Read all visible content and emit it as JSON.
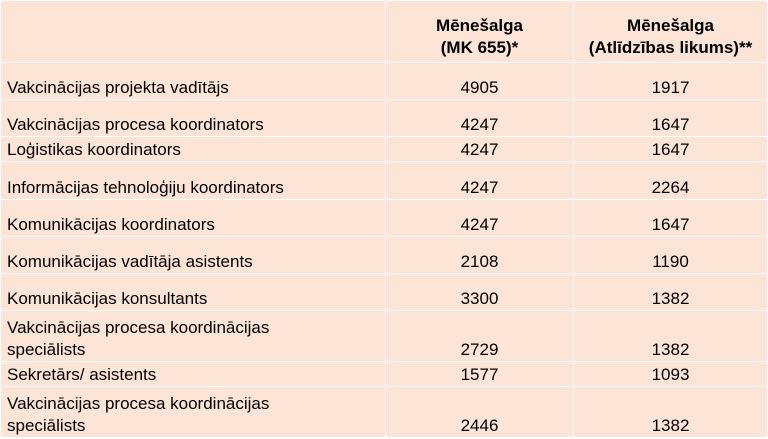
{
  "table": {
    "headers": [
      "",
      [
        "Mēnešalga",
        "(MK 655)*"
      ],
      [
        "Mēnešalga",
        "(Atlīdzības likums)**"
      ]
    ],
    "rows": [
      {
        "lines": [
          "Vakcinācijas projekta vadītājs"
        ],
        "mk": "4905",
        "law": "1917"
      },
      {
        "lines": [
          "Vakcinācijas procesa koordinators"
        ],
        "mk": "4247",
        "law": "1647"
      },
      {
        "lines": [
          "Loģistikas koordinators"
        ],
        "mk": "4247",
        "law": "1647"
      },
      {
        "lines": [
          "Informācijas tehnoloģiju koordinators"
        ],
        "mk": "4247",
        "law": "2264"
      },
      {
        "lines": [
          "Komunikācijas koordinators"
        ],
        "mk": "4247",
        "law": "1647"
      },
      {
        "lines": [
          "Komunikācijas vadītāja asistents"
        ],
        "mk": "2108",
        "law": "1190"
      },
      {
        "lines": [
          "Komunikācijas konsultants"
        ],
        "mk": "3300",
        "law": "1382"
      },
      {
        "lines": [
          "Vakcinācijas procesa koordinācijas",
          "speciālists"
        ],
        "mk": "2729",
        "law": "1382"
      },
      {
        "lines": [
          "Sekretārs/ asistents"
        ],
        "mk": "1577",
        "law": "1093"
      },
      {
        "lines": [
          "Vakcinācijas procesa koordinācijas",
          "speciālists"
        ],
        "mk": "2446",
        "law": "1382"
      }
    ]
  }
}
